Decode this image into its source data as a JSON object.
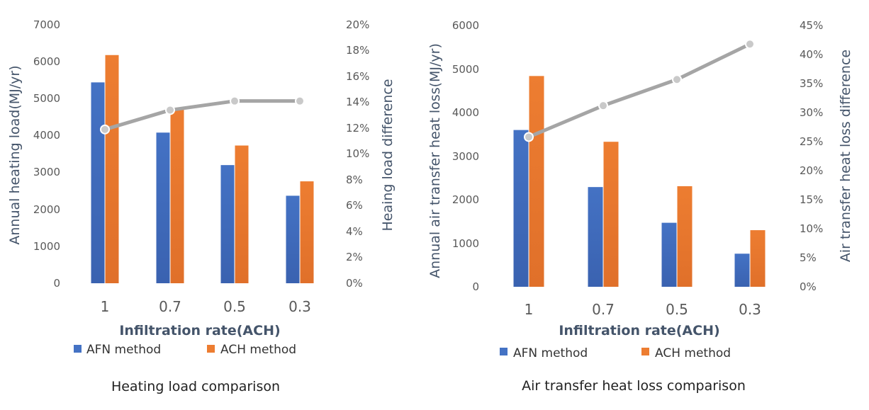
{
  "colors": {
    "afn": "#4472c4",
    "ach": "#ed7d31",
    "line": "#a5a5a5",
    "axis_text": "#595959",
    "title_text": "#44546a"
  },
  "chart_data": [
    {
      "type": "bar",
      "title": "Heating load comparison",
      "categories": [
        "1",
        "0.7",
        "0.5",
        "0.3"
      ],
      "xlabel": "Infiltration rate(ACH)",
      "ylabel": "Annual heating load(MJ/yr)",
      "y2label": "Heaing load difference",
      "ylim": [
        0,
        7000
      ],
      "yticks": [
        "0",
        "1000",
        "2000",
        "3000",
        "4000",
        "5000",
        "6000",
        "7000"
      ],
      "y2lim": [
        0,
        20
      ],
      "y2ticks": [
        "0%",
        "2%",
        "4%",
        "6%",
        "8%",
        "10%",
        "12%",
        "14%",
        "16%",
        "18%",
        "20%"
      ],
      "series": [
        {
          "name": "AFN method",
          "kind": "bar",
          "values": [
            5440,
            4080,
            3200,
            2370
          ]
        },
        {
          "name": "ACH method",
          "kind": "bar",
          "values": [
            6180,
            4700,
            3730,
            2760
          ]
        },
        {
          "name": "Heating load difference",
          "kind": "line",
          "axis": "secondary",
          "values": [
            11.9,
            13.4,
            14.1,
            14.1
          ]
        }
      ],
      "legend": [
        "AFN method",
        "ACH method"
      ],
      "legend_position": "bottom"
    },
    {
      "type": "bar",
      "title": "Air transfer heat loss comparison",
      "categories": [
        "1",
        "0.7",
        "0.5",
        "0.3"
      ],
      "xlabel": "Infiltration rate(ACH)",
      "ylabel": "Annual air transfer heat loss(MJ/yr)",
      "y2label": "Air transfer heat loss difference",
      "ylim": [
        0,
        6000
      ],
      "yticks": [
        "0",
        "1000",
        "2000",
        "3000",
        "4000",
        "5000",
        "6000"
      ],
      "y2lim": [
        0,
        45
      ],
      "y2ticks": [
        "0%",
        "5%",
        "10%",
        "15%",
        "20%",
        "25%",
        "30%",
        "35%",
        "40%",
        "45%"
      ],
      "series": [
        {
          "name": "AFN method",
          "kind": "bar",
          "values": [
            3600,
            2290,
            1470,
            760
          ]
        },
        {
          "name": "ACH method",
          "kind": "bar",
          "values": [
            4840,
            3330,
            2310,
            1300
          ]
        },
        {
          "name": "Air transfer heat loss difference",
          "kind": "line",
          "axis": "secondary",
          "values": [
            25.8,
            31.2,
            35.7,
            41.8
          ]
        }
      ],
      "legend": [
        "AFN method",
        "ACH method"
      ],
      "legend_position": "bottom"
    }
  ]
}
